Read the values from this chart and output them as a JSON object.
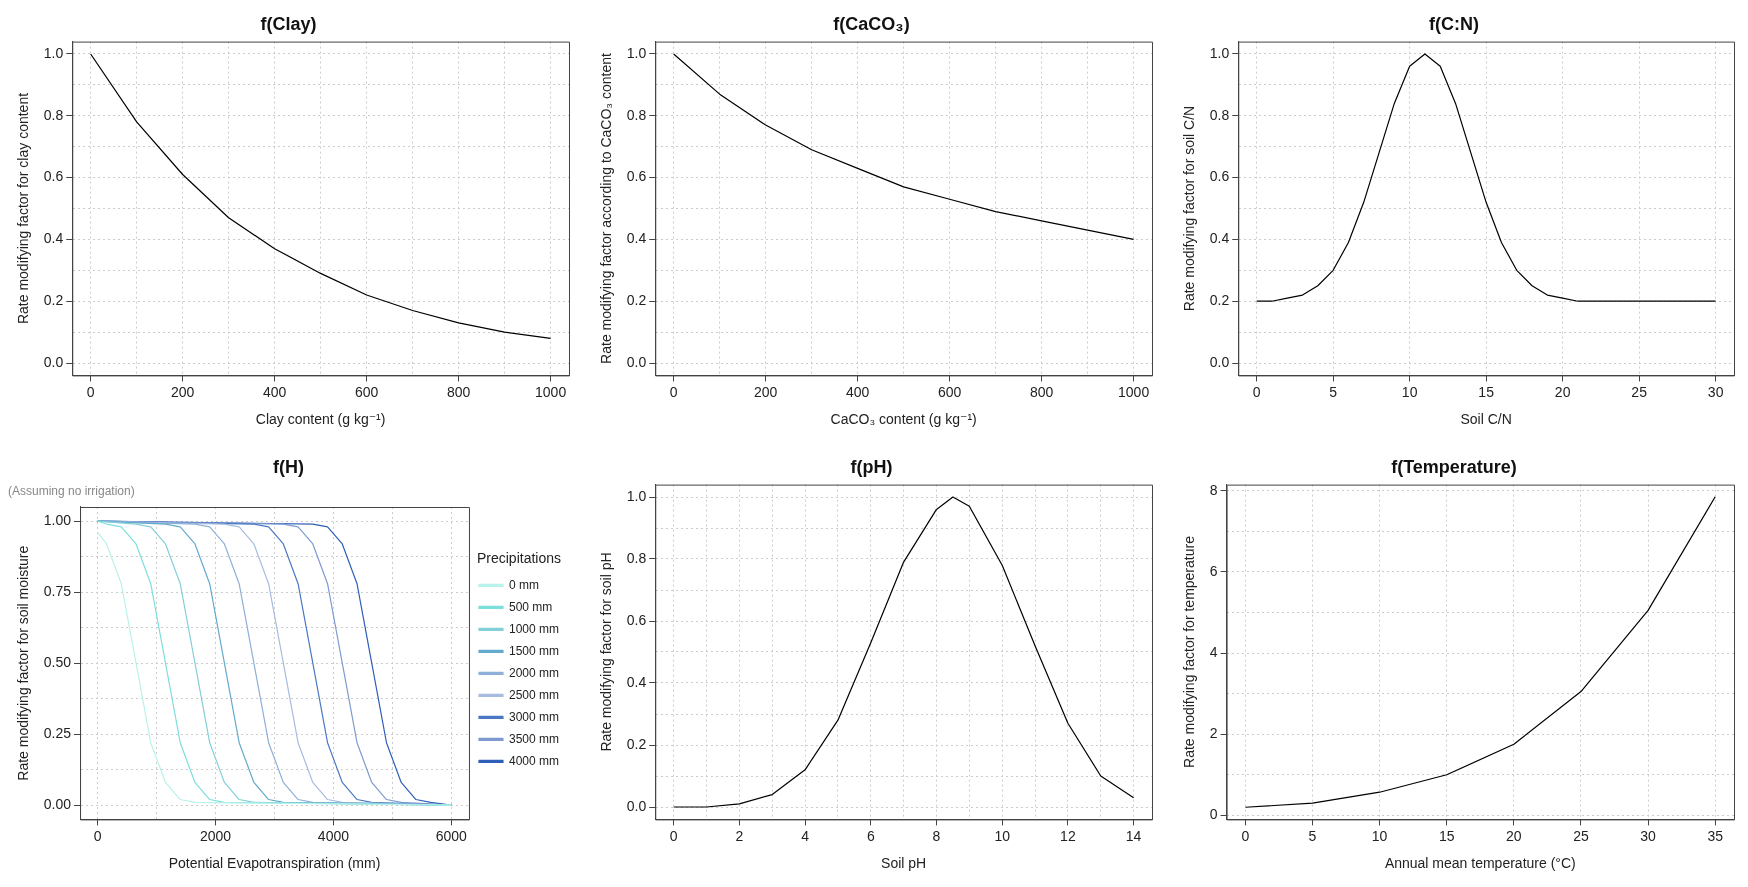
{
  "chart_data": [
    {
      "type": "line",
      "title": "f(Clay)",
      "xlabel": "Clay content (g kg⁻¹)",
      "ylabel": "Rate modifying factor for clay content",
      "grid": true,
      "xlim": [
        -40,
        1040
      ],
      "ylim": [
        -0.04,
        1.04
      ],
      "xticks": [
        0,
        {
          "value": 100,
          "label": null
        },
        200,
        {
          "value": 300,
          "label": null
        },
        400,
        {
          "value": 500,
          "label": null
        },
        600,
        {
          "value": 700,
          "label": null
        },
        800,
        {
          "value": 900,
          "label": null
        },
        1000
      ],
      "yticks": [
        {
          "value": 0,
          "label": "0.0"
        },
        {
          "value": 0.1,
          "label": null
        },
        0.2,
        {
          "value": 0.3,
          "label": null
        },
        0.4,
        {
          "value": 0.5,
          "label": null
        },
        0.6,
        {
          "value": 0.7,
          "label": null
        },
        0.8,
        {
          "value": 0.9,
          "label": null
        },
        {
          "value": 1,
          "label": "1.0"
        }
      ],
      "x": [
        0,
        100,
        200,
        300,
        400,
        500,
        600,
        700,
        800,
        900,
        1000
      ],
      "series": [
        {
          "color": "#000000",
          "values": [
            1.0,
            0.78,
            0.61,
            0.47,
            0.37,
            0.29,
            0.22,
            0.17,
            0.13,
            0.1,
            0.08
          ]
        }
      ]
    },
    {
      "type": "line",
      "title": "f(CaCO₃)",
      "xlabel": "CaCO₃ content (g kg⁻¹)",
      "ylabel": "Rate modifying factor according to CaCO₃ content",
      "grid": true,
      "xlim": [
        -40,
        1040
      ],
      "ylim": [
        -0.04,
        1.04
      ],
      "xticks": [
        0,
        {
          "value": 100,
          "label": null
        },
        200,
        {
          "value": 300,
          "label": null
        },
        400,
        {
          "value": 500,
          "label": null
        },
        600,
        {
          "value": 700,
          "label": null
        },
        800,
        {
          "value": 900,
          "label": null
        },
        1000
      ],
      "yticks": [
        {
          "value": 0,
          "label": "0.0"
        },
        {
          "value": 0.1,
          "label": null
        },
        0.2,
        {
          "value": 0.3,
          "label": null
        },
        0.4,
        {
          "value": 0.5,
          "label": null
        },
        0.6,
        {
          "value": 0.7,
          "label": null
        },
        0.8,
        {
          "value": 0.9,
          "label": null
        },
        {
          "value": 1,
          "label": "1.0"
        }
      ],
      "x": [
        0,
        100,
        200,
        300,
        400,
        500,
        600,
        700,
        800,
        900,
        1000
      ],
      "series": [
        {
          "color": "#000000",
          "values": [
            1.0,
            0.87,
            0.77,
            0.69,
            0.63,
            0.57,
            0.53,
            0.49,
            0.46,
            0.43,
            0.4
          ]
        }
      ]
    },
    {
      "type": "line",
      "title": "f(C:N)",
      "xlabel": "Soil C/N",
      "ylabel": "Rate modifying factor for soil C/N",
      "grid": true,
      "xlim": [
        -1.2,
        31.2
      ],
      "ylim": [
        -0.04,
        1.04
      ],
      "xticks": [
        0,
        5,
        10,
        15,
        20,
        25,
        30
      ],
      "yticks": [
        {
          "value": 0,
          "label": "0.0"
        },
        {
          "value": 0.1,
          "label": null
        },
        0.2,
        {
          "value": 0.3,
          "label": null
        },
        0.4,
        {
          "value": 0.5,
          "label": null
        },
        0.6,
        {
          "value": 0.7,
          "label": null
        },
        0.8,
        {
          "value": 0.9,
          "label": null
        },
        {
          "value": 1,
          "label": "1.0"
        }
      ],
      "x": [
        0,
        1,
        2,
        3,
        4,
        5,
        6,
        7,
        8,
        9,
        10,
        11,
        12,
        13,
        14,
        15,
        16,
        17,
        18,
        19,
        20,
        21,
        22,
        30
      ],
      "series": [
        {
          "color": "#000000",
          "values": [
            0.2,
            0.2,
            0.21,
            0.22,
            0.25,
            0.3,
            0.39,
            0.52,
            0.68,
            0.84,
            0.96,
            1.0,
            0.96,
            0.84,
            0.68,
            0.52,
            0.39,
            0.3,
            0.25,
            0.22,
            0.21,
            0.2,
            0.2,
            0.2
          ]
        }
      ]
    },
    {
      "type": "line",
      "title": "f(H)",
      "subtitle": "(Assuming no irrigation)",
      "xlabel": "Potential Evapotranspiration (mm)",
      "ylabel": "Rate modifying factor for soil moisture",
      "legend": "right",
      "legend_title": "Precipitations",
      "grid": true,
      "xlim": [
        -300,
        6300
      ],
      "ylim": [
        -0.05,
        1.05
      ],
      "xticks": [
        0,
        {
          "value": 1000,
          "label": null
        },
        2000,
        {
          "value": 3000,
          "label": null
        },
        4000,
        {
          "value": 5000,
          "label": null
        },
        6000
      ],
      "yticks": [
        {
          "value": 0,
          "label": "0.00"
        },
        {
          "value": 0.125,
          "label": null
        },
        0.25,
        {
          "value": 0.375,
          "label": null
        },
        {
          "value": 0.5,
          "label": "0.50"
        },
        {
          "value": 0.625,
          "label": null
        },
        0.75,
        {
          "value": 0.875,
          "label": null
        },
        {
          "value": 1,
          "label": "1.00"
        }
      ],
      "series": [
        {
          "name": "0 mm",
          "color": "#b8f2ea",
          "x": [
            0,
            150,
            400,
            650,
            900,
            1150,
            1400,
            1650,
            6000
          ],
          "values": [
            0.96,
            0.92,
            0.78,
            0.5,
            0.22,
            0.08,
            0.02,
            0.01,
            0
          ]
        },
        {
          "name": "500 mm",
          "color": "#7ddfdc",
          "x": [
            0,
            150,
            400,
            650,
            900,
            1150,
            1400,
            1650,
            1900,
            2150,
            6000
          ],
          "values": [
            1,
            0.99,
            0.98,
            0.92,
            0.78,
            0.5,
            0.22,
            0.08,
            0.02,
            0.01,
            0
          ]
        },
        {
          "name": "1000 mm",
          "color": "#84cfd8",
          "x": [
            0,
            650,
            900,
            1150,
            1400,
            1650,
            1900,
            2150,
            2400,
            2650,
            6000
          ],
          "values": [
            1,
            0.99,
            0.98,
            0.92,
            0.78,
            0.5,
            0.22,
            0.08,
            0.02,
            0.01,
            0
          ]
        },
        {
          "name": "1500 mm",
          "color": "#64aacd",
          "x": [
            0,
            1150,
            1400,
            1650,
            1900,
            2150,
            2400,
            2650,
            2900,
            3150,
            6000
          ],
          "values": [
            1,
            0.99,
            0.98,
            0.92,
            0.78,
            0.5,
            0.22,
            0.08,
            0.02,
            0.01,
            0
          ]
        },
        {
          "name": "2000 mm",
          "color": "#8eb0d8",
          "x": [
            0,
            1650,
            1900,
            2150,
            2400,
            2650,
            2900,
            3150,
            3400,
            3650,
            6000
          ],
          "values": [
            1,
            0.99,
            0.98,
            0.92,
            0.78,
            0.5,
            0.22,
            0.08,
            0.02,
            0.01,
            0
          ]
        },
        {
          "name": "2500 mm",
          "color": "#a7bce0",
          "x": [
            0,
            2150,
            2400,
            2650,
            2900,
            3150,
            3400,
            3650,
            3900,
            4150,
            6000
          ],
          "values": [
            1,
            0.99,
            0.98,
            0.92,
            0.78,
            0.5,
            0.22,
            0.08,
            0.02,
            0.01,
            0
          ]
        },
        {
          "name": "3000 mm",
          "color": "#4a78c4",
          "x": [
            0,
            2650,
            2900,
            3150,
            3400,
            3650,
            3900,
            4150,
            4400,
            4650,
            6000
          ],
          "values": [
            1,
            0.99,
            0.98,
            0.92,
            0.78,
            0.5,
            0.22,
            0.08,
            0.02,
            0.01,
            0
          ]
        },
        {
          "name": "3500 mm",
          "color": "#7f9ad0",
          "x": [
            0,
            3150,
            3400,
            3650,
            3900,
            4150,
            4400,
            4650,
            4900,
            5150,
            6000
          ],
          "values": [
            1,
            0.99,
            0.98,
            0.92,
            0.78,
            0.5,
            0.22,
            0.08,
            0.02,
            0.01,
            0
          ]
        },
        {
          "name": "4000 mm",
          "color": "#2f5fb8",
          "x": [
            0,
            3650,
            3900,
            4150,
            4400,
            4650,
            4900,
            5150,
            5400,
            5650,
            6000
          ],
          "values": [
            1,
            0.99,
            0.98,
            0.92,
            0.78,
            0.5,
            0.22,
            0.08,
            0.02,
            0.01,
            0
          ]
        }
      ]
    },
    {
      "type": "line",
      "title": "f(pH)",
      "xlabel": "Soil pH",
      "ylabel": "Rate modifying factor for soil pH",
      "grid": true,
      "xlim": [
        -0.56,
        14.56
      ],
      "ylim": [
        -0.04,
        1.04
      ],
      "xticks": [
        0,
        {
          "value": 1,
          "label": null
        },
        2,
        {
          "value": 3,
          "label": null
        },
        4,
        {
          "value": 5,
          "label": null
        },
        6,
        {
          "value": 7,
          "label": null
        },
        8,
        {
          "value": 9,
          "label": null
        },
        10,
        {
          "value": 11,
          "label": null
        },
        12,
        {
          "value": 13,
          "label": null
        },
        14
      ],
      "yticks": [
        {
          "value": 0,
          "label": "0.0"
        },
        {
          "value": 0.1,
          "label": null
        },
        0.2,
        {
          "value": 0.3,
          "label": null
        },
        0.4,
        {
          "value": 0.5,
          "label": null
        },
        0.6,
        {
          "value": 0.7,
          "label": null
        },
        0.8,
        {
          "value": 0.9,
          "label": null
        },
        {
          "value": 1,
          "label": "1.0"
        }
      ],
      "x": [
        0,
        1,
        2,
        3,
        4,
        5,
        6,
        7,
        8,
        8.5,
        9,
        10,
        11,
        12,
        13,
        14
      ],
      "series": [
        {
          "color": "#000000",
          "values": [
            0,
            0,
            0.01,
            0.04,
            0.12,
            0.28,
            0.53,
            0.79,
            0.96,
            1.0,
            0.97,
            0.78,
            0.52,
            0.27,
            0.1,
            0.03
          ]
        }
      ]
    },
    {
      "type": "line",
      "title": "f(Temperature)",
      "xlabel": "Annual mean temperature (°C)",
      "ylabel": "Rate modifying factor for temperature",
      "grid": true,
      "xlim": [
        -1.4,
        36.4
      ],
      "ylim": [
        -0.1,
        8.15
      ],
      "xticks": [
        0,
        5,
        10,
        15,
        20,
        25,
        30,
        35
      ],
      "yticks": [
        0,
        {
          "value": 1,
          "label": null
        },
        2,
        {
          "value": 3,
          "label": null
        },
        4,
        {
          "value": 5,
          "label": null
        },
        6,
        {
          "value": 7,
          "label": null
        },
        8
      ],
      "x": [
        0,
        5,
        10,
        15,
        20,
        25,
        30,
        35
      ],
      "series": [
        {
          "color": "#000000",
          "values": [
            0.2,
            0.3,
            0.57,
            1.0,
            1.75,
            3.05,
            5.05,
            7.85
          ]
        }
      ]
    }
  ]
}
